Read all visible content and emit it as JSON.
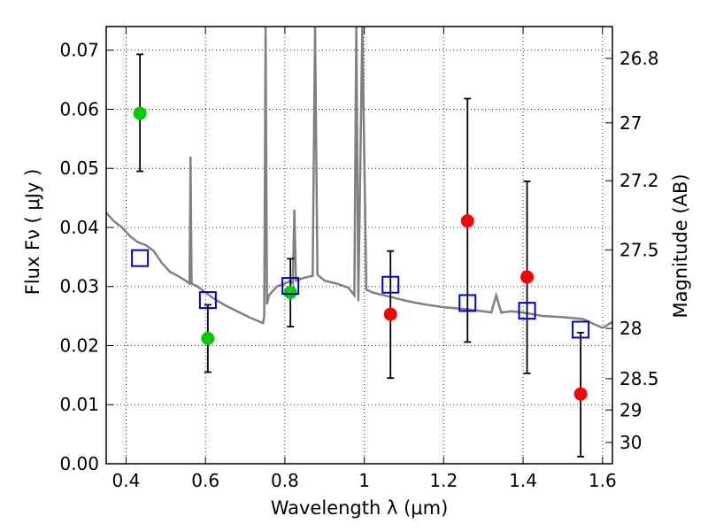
{
  "chart_data": {
    "type": "scatter",
    "xlabel": "Wavelength  λ (μm)",
    "ylabel": "Flux  Fν  ( μJy )",
    "y2label": "Magnitude (AB)",
    "xlim": [
      0.35,
      1.625
    ],
    "ylim": [
      0.0,
      0.074
    ],
    "grid": true,
    "x_ticks": [
      0.4,
      0.6,
      0.8,
      1.0,
      1.2,
      1.4,
      1.6
    ],
    "x_tick_labels": [
      "0.4",
      "0.6",
      "0.8",
      "1",
      "1.2",
      "1.4",
      "1.6"
    ],
    "y_ticks": [
      0.0,
      0.01,
      0.02,
      0.03,
      0.04,
      0.05,
      0.06,
      0.07
    ],
    "y_tick_labels": [
      "0.00",
      "0.01",
      "0.02",
      "0.03",
      "0.04",
      "0.05",
      "0.06",
      "0.07"
    ],
    "y2_ticks": [
      {
        "flux": 0.0686,
        "label": "26.8"
      },
      {
        "flux": 0.0577,
        "label": "27"
      },
      {
        "flux": 0.0479,
        "label": "27.2"
      },
      {
        "flux": 0.0362,
        "label": "27.5"
      },
      {
        "flux": 0.0229,
        "label": "28"
      },
      {
        "flux": 0.0144,
        "label": "28.5"
      },
      {
        "flux": 0.0091,
        "label": "29"
      },
      {
        "flux": 0.0036,
        "label": "30"
      }
    ],
    "series": [
      {
        "marker": "circle",
        "color": "#00cc00",
        "points": [
          {
            "x": 0.435,
            "y": 0.0593,
            "err_low": 0.0495,
            "err_high": 0.0693
          },
          {
            "x": 0.606,
            "y": 0.0212,
            "err_low": 0.0155,
            "err_high": 0.0269
          },
          {
            "x": 0.814,
            "y": 0.029,
            "err_low": 0.0232,
            "err_high": 0.0347
          }
        ]
      },
      {
        "marker": "circle",
        "color": "#ff0000",
        "points": [
          {
            "x": 1.066,
            "y": 0.0253,
            "err_low": 0.0145,
            "err_high": 0.036
          },
          {
            "x": 1.26,
            "y": 0.0411,
            "err_low": 0.0206,
            "err_high": 0.0618
          },
          {
            "x": 1.41,
            "y": 0.0316,
            "err_low": 0.0153,
            "err_high": 0.0478
          },
          {
            "x": 1.545,
            "y": 0.0118,
            "err_low": 0.0012,
            "err_high": 0.0222
          }
        ]
      },
      {
        "marker": "open-square",
        "color": "#0000cc",
        "points": [
          {
            "x": 0.435,
            "y": 0.0348
          },
          {
            "x": 0.606,
            "y": 0.0277
          },
          {
            "x": 0.814,
            "y": 0.0301
          },
          {
            "x": 1.066,
            "y": 0.0303
          },
          {
            "x": 1.26,
            "y": 0.0272
          },
          {
            "x": 1.41,
            "y": 0.0259
          },
          {
            "x": 1.545,
            "y": 0.0227
          }
        ]
      },
      {
        "marker": "line",
        "color": "#808080",
        "line": [
          [
            0.35,
            0.0425
          ],
          [
            0.37,
            0.041
          ],
          [
            0.39,
            0.04
          ],
          [
            0.41,
            0.0385
          ],
          [
            0.43,
            0.0375
          ],
          [
            0.45,
            0.037
          ],
          [
            0.47,
            0.036
          ],
          [
            0.49,
            0.034
          ],
          [
            0.51,
            0.0325
          ],
          [
            0.53,
            0.0318
          ],
          [
            0.55,
            0.031
          ],
          [
            0.56,
            0.0305
          ],
          [
            0.5625,
            0.052
          ],
          [
            0.565,
            0.0305
          ],
          [
            0.58,
            0.03
          ],
          [
            0.6,
            0.029
          ],
          [
            0.62,
            0.028
          ],
          [
            0.65,
            0.0268
          ],
          [
            0.68,
            0.0258
          ],
          [
            0.71,
            0.0248
          ],
          [
            0.745,
            0.0238
          ],
          [
            0.748,
            0.025
          ],
          [
            0.7515,
            0.074
          ],
          [
            0.755,
            0.027
          ],
          [
            0.76,
            0.0285
          ],
          [
            0.78,
            0.03
          ],
          [
            0.8,
            0.0305
          ],
          [
            0.815,
            0.031
          ],
          [
            0.82,
            0.0305
          ],
          [
            0.824,
            0.043
          ],
          [
            0.828,
            0.031
          ],
          [
            0.85,
            0.0315
          ],
          [
            0.87,
            0.0318
          ],
          [
            0.876,
            0.074
          ],
          [
            0.882,
            0.032
          ],
          [
            0.9,
            0.031
          ],
          [
            0.93,
            0.0305
          ],
          [
            0.96,
            0.0298
          ],
          [
            0.975,
            0.0285
          ],
          [
            0.98,
            0.074
          ],
          [
            0.985,
            0.0275
          ],
          [
            0.995,
            0.074
          ],
          [
            1.005,
            0.0295
          ],
          [
            1.02,
            0.029
          ],
          [
            1.05,
            0.0285
          ],
          [
            1.08,
            0.028
          ],
          [
            1.11,
            0.0275
          ],
          [
            1.15,
            0.027
          ],
          [
            1.2,
            0.0265
          ],
          [
            1.25,
            0.0262
          ],
          [
            1.3,
            0.0258
          ],
          [
            1.32,
            0.0256
          ],
          [
            1.332,
            0.0285
          ],
          [
            1.345,
            0.0256
          ],
          [
            1.37,
            0.0258
          ],
          [
            1.4,
            0.0256
          ],
          [
            1.45,
            0.025
          ],
          [
            1.5,
            0.0248
          ],
          [
            1.55,
            0.0245
          ],
          [
            1.6,
            0.023
          ],
          [
            1.625,
            0.024
          ]
        ]
      }
    ]
  }
}
